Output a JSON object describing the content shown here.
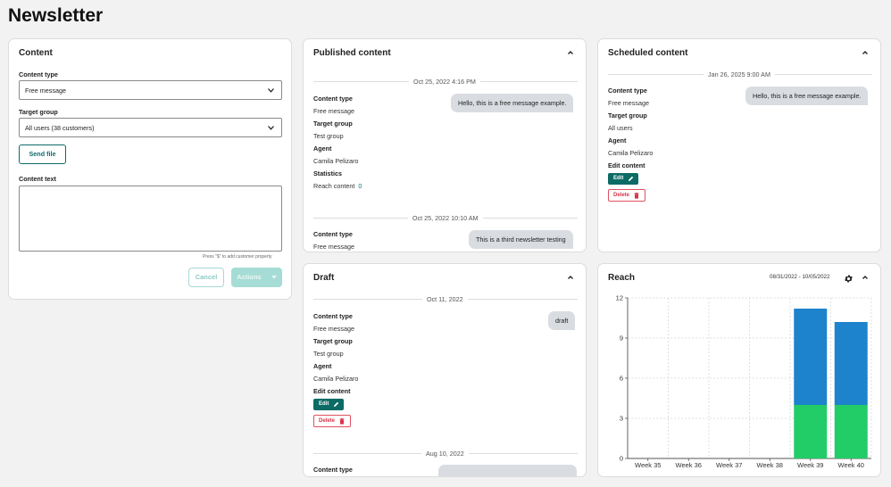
{
  "page": {
    "title": "Newsletter"
  },
  "content_card": {
    "title": "Content",
    "content_type_label": "Content type",
    "content_type_value": "Free message",
    "target_group_label": "Target group",
    "target_group_value": "All users (38 customers)",
    "send_file_label": "Send file",
    "content_text_label": "Content text",
    "content_text_value": "",
    "hint": "Press \"$\" to add customer property",
    "cancel_label": "Cancel",
    "actions_label": "Actions"
  },
  "published": {
    "title": "Published content",
    "items": [
      {
        "date": "Oct 25, 2022 4:16 PM",
        "message": "Hello, this is a free message example.",
        "content_type_label": "Content type",
        "content_type": "Free message",
        "target_group_label": "Target group",
        "target_group": "Test group",
        "agent_label": "Agent",
        "agent": "Camila Pelizaro",
        "statistics_label": "Statistics",
        "reach_label": "Reach content",
        "reach_value": "0"
      },
      {
        "date": "Oct 25, 2022 10:10 AM",
        "message": "This is a third newsletter testing",
        "content_type_label": "Content type",
        "content_type": "Free message"
      }
    ]
  },
  "scheduled": {
    "title": "Scheduled content",
    "item": {
      "date": "Jan 26, 2025 9:00 AM",
      "message": "Hello, this is a free message example.",
      "content_type_label": "Content type",
      "content_type": "Free message",
      "target_group_label": "Target group",
      "target_group": "All users",
      "agent_label": "Agent",
      "agent": "Camila Pelizaro",
      "edit_content_label": "Edit content",
      "edit_label": "Edit",
      "delete_label": "Delete"
    }
  },
  "draft": {
    "title": "Draft",
    "items": [
      {
        "date": "Oct 11, 2022",
        "message": "draft",
        "content_type_label": "Content type",
        "content_type": "Free message",
        "target_group_label": "Target group",
        "target_group": "Test group",
        "agent_label": "Agent",
        "agent": "Camila Pelizaro",
        "edit_content_label": "Edit content",
        "edit_label": "Edit",
        "delete_label": "Delete"
      },
      {
        "date": "Aug 10, 2022",
        "content_type_label": "Content type"
      }
    ]
  },
  "reach": {
    "title": "Reach",
    "date_range": "08/31/2022 - 10/05/2022",
    "icons": {
      "settings": "gear-icon",
      "collapse": "chevron-up-icon"
    }
  },
  "colors": {
    "teal": "#0d6b66",
    "bar_blue": "#1d83cc",
    "bar_green": "#22cc66",
    "delete_red": "#d83548"
  },
  "chart_data": {
    "type": "bar",
    "stacked": true,
    "categories": [
      "Week 35",
      "Week 36",
      "Week 37",
      "Week 38",
      "Week 39",
      "Week 40"
    ],
    "series": [
      {
        "values": [
          0,
          0,
          0,
          0,
          4,
          4
        ],
        "color": "#22cc66"
      },
      {
        "values": [
          0,
          0,
          0,
          0,
          7.2,
          6.2
        ],
        "color": "#1d83cc"
      }
    ],
    "yticks": [
      0,
      3,
      6,
      9,
      12
    ],
    "ylim": [
      0,
      12
    ],
    "grid": true
  }
}
